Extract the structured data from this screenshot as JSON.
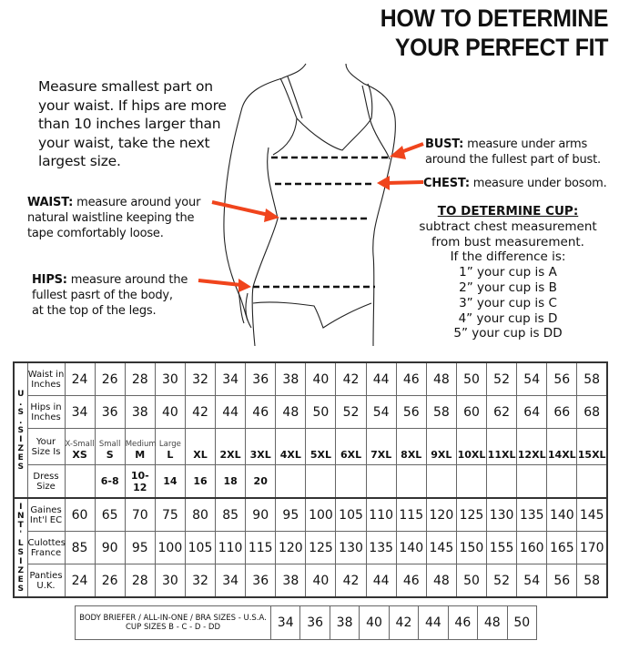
{
  "title": {
    "line1": "HOW TO DETERMINE",
    "line2": "YOUR PERFECT FIT"
  },
  "intro": [
    "Measure smallest part on",
    "your waist. If hips are more",
    "than 10 inches larger than",
    "your waist, take the next",
    "largest size."
  ],
  "waist": {
    "label": "WAIST:",
    "text": "measure around your",
    "lines": [
      "natural waistline keeping the",
      "tape comfortably loose."
    ]
  },
  "hips": {
    "label": "HIPS:",
    "text": "measure around the",
    "lines": [
      "fullest pasrt of the body,",
      "at the top of the legs."
    ]
  },
  "bust": {
    "label": "BUST:",
    "text": "measure under arms",
    "lines": [
      "around the fullest part of bust."
    ]
  },
  "chest": {
    "label": "CHEST:",
    "text": "measure under bosom."
  },
  "cup": {
    "heading": "TO DETERMINE CUP:",
    "lines": [
      "subtract chest measurement",
      "from bust measurement.",
      "If the difference is:",
      "1” your cup is A",
      "2” your cup is B",
      "3” your cup is C",
      "4” your cup is D",
      "5” your cup is DD"
    ]
  },
  "colors": {
    "arrow": "#f0441c"
  },
  "size_table": {
    "us_group": "U.S. SIZES",
    "intl_group": "INT'L SIZES",
    "rows": {
      "waist": {
        "label": "Waist in Inches",
        "values": [
          "24",
          "26",
          "28",
          "30",
          "32",
          "34",
          "36",
          "38",
          "40",
          "42",
          "44",
          "46",
          "48",
          "50",
          "52",
          "54",
          "56",
          "58"
        ]
      },
      "hips": {
        "label": "Hips in Inches",
        "values": [
          "34",
          "36",
          "38",
          "40",
          "42",
          "44",
          "46",
          "48",
          "50",
          "52",
          "54",
          "56",
          "58",
          "60",
          "62",
          "64",
          "66",
          "68"
        ]
      },
      "size": {
        "label": "Your Size Is",
        "small_labels": [
          "X-Small",
          "Small",
          "Medium",
          "Large",
          "",
          "",
          "",
          "",
          "",
          "",
          "",
          "",
          "",
          "",
          "",
          "",
          "",
          ""
        ],
        "values": [
          "XS",
          "S",
          "M",
          "L",
          "XL",
          "2XL",
          "3XL",
          "4XL",
          "5XL",
          "6XL",
          "7XL",
          "8XL",
          "9XL",
          "10XL",
          "11XL",
          "12XL",
          "14XL",
          "15XL"
        ]
      },
      "dress": {
        "label": "Dress Size",
        "values": [
          "",
          "6-8",
          "10-12",
          "14",
          "16",
          "18",
          "20",
          "",
          "",
          "",
          "",
          "",
          "",
          "",
          "",
          "",
          "",
          ""
        ]
      },
      "gaines": {
        "label": "Gaines Int'l EC",
        "values": [
          "60",
          "65",
          "70",
          "75",
          "80",
          "85",
          "90",
          "95",
          "100",
          "105",
          "110",
          "115",
          "120",
          "125",
          "130",
          "135",
          "140",
          "145"
        ]
      },
      "culottes": {
        "label": "Culottes France",
        "values": [
          "85",
          "90",
          "95",
          "100",
          "105",
          "110",
          "115",
          "120",
          "125",
          "130",
          "135",
          "140",
          "145",
          "150",
          "155",
          "160",
          "165",
          "170"
        ]
      },
      "panties": {
        "label": "Panties U.K.",
        "values": [
          "24",
          "26",
          "28",
          "30",
          "32",
          "34",
          "36",
          "38",
          "40",
          "42",
          "44",
          "46",
          "48",
          "50",
          "52",
          "54",
          "56",
          "58"
        ]
      }
    }
  },
  "bra_table": {
    "label1": "BODY BRIEFER / ALL-IN-ONE / BRA SIZES - U.S.A.",
    "label2": "CUP SIZES B - C - D - DD",
    "values": [
      "34",
      "36",
      "38",
      "40",
      "42",
      "44",
      "46",
      "48",
      "50"
    ]
  }
}
